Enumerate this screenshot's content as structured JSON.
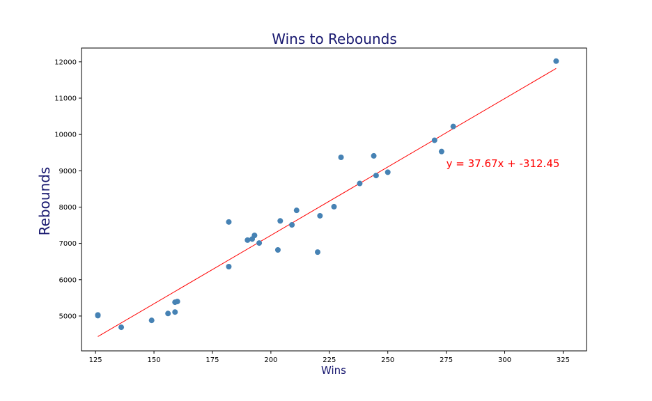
{
  "chart_data": {
    "type": "scatter",
    "title": "Wins to Rebounds",
    "xlabel": "Wins",
    "ylabel": "Rebounds",
    "xlim": [
      119,
      335
    ],
    "ylim": [
      4040,
      12380
    ],
    "xticks": [
      125,
      150,
      175,
      200,
      225,
      250,
      275,
      300,
      325
    ],
    "yticks": [
      5000,
      6000,
      7000,
      8000,
      9000,
      10000,
      11000,
      12000
    ],
    "grid": false,
    "points": [
      {
        "x": 126,
        "y": 5030
      },
      {
        "x": 126,
        "y": 5010
      },
      {
        "x": 136,
        "y": 4690
      },
      {
        "x": 149,
        "y": 4880
      },
      {
        "x": 156,
        "y": 5070
      },
      {
        "x": 159,
        "y": 5380
      },
      {
        "x": 159,
        "y": 5110
      },
      {
        "x": 160,
        "y": 5400
      },
      {
        "x": 182,
        "y": 7590
      },
      {
        "x": 182,
        "y": 6360
      },
      {
        "x": 190,
        "y": 7090
      },
      {
        "x": 192,
        "y": 7120
      },
      {
        "x": 193,
        "y": 7220
      },
      {
        "x": 195,
        "y": 7010
      },
      {
        "x": 203,
        "y": 6820
      },
      {
        "x": 204,
        "y": 7620
      },
      {
        "x": 209,
        "y": 7510
      },
      {
        "x": 211,
        "y": 7910
      },
      {
        "x": 220,
        "y": 6760
      },
      {
        "x": 221,
        "y": 7760
      },
      {
        "x": 227,
        "y": 8010
      },
      {
        "x": 230,
        "y": 9370
      },
      {
        "x": 238,
        "y": 8650
      },
      {
        "x": 244,
        "y": 9410
      },
      {
        "x": 245,
        "y": 8870
      },
      {
        "x": 250,
        "y": 8960
      },
      {
        "x": 270,
        "y": 9840
      },
      {
        "x": 273,
        "y": 9530
      },
      {
        "x": 278,
        "y": 10220
      },
      {
        "x": 322,
        "y": 12020
      }
    ],
    "regression": {
      "slope": 37.67,
      "intercept": -312.45,
      "x_range": [
        126,
        322
      ],
      "equation_label": "y = 37.67x + -312.45",
      "label_anchor": {
        "x": 275,
        "y": 9100
      }
    },
    "colors": {
      "points": "#4682b4",
      "line": "#ff0000",
      "annotation": "#ff0000",
      "title": "#191970",
      "axis_labels": "#191970"
    }
  }
}
